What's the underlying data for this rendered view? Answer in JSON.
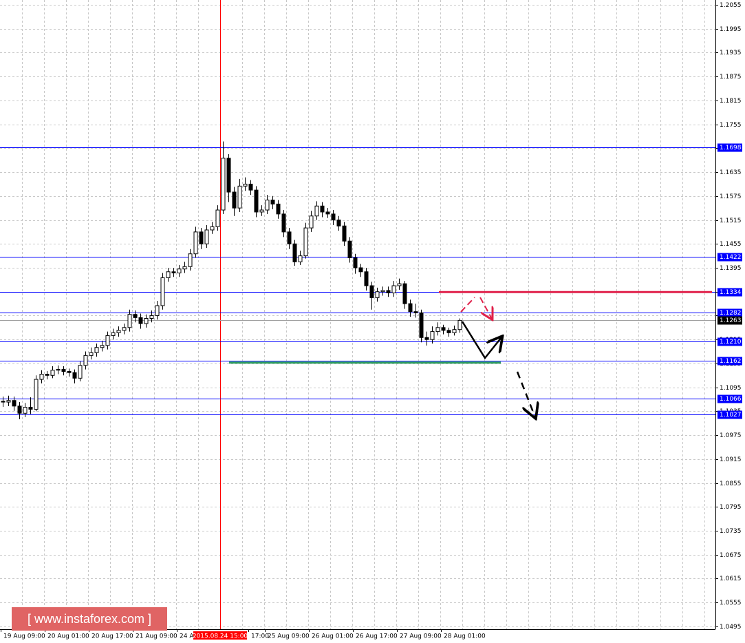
{
  "chart_data": {
    "type": "candlestick",
    "categories": [
      "19 Aug 09:00",
      null,
      null,
      null,
      null,
      null,
      null,
      null,
      "20 Aug 01:00",
      null,
      null,
      null,
      null,
      null,
      null,
      null,
      "20 Aug 17:00",
      null,
      null,
      null,
      null,
      null,
      null,
      null,
      "21 Aug 09:00",
      null,
      null,
      null,
      null,
      null,
      null,
      null,
      "24 A",
      null,
      null,
      null,
      null,
      null,
      null,
      null,
      "2015.08.24 15:00",
      null,
      null,
      null,
      null,
      "17:00",
      null,
      null,
      "25 Aug 09:00",
      null,
      null,
      null,
      null,
      null,
      null,
      null,
      "26 Aug 01:00",
      null,
      null,
      null,
      null,
      null,
      null,
      null,
      "26 Aug 17:00",
      null,
      null,
      null,
      null,
      null,
      null,
      null,
      "27 Aug 09:00",
      null,
      null,
      null,
      null,
      null,
      null,
      null,
      "28 Aug 01:00",
      null,
      null,
      null
    ],
    "cursor_index": 40,
    "open": [
      1.106,
      1.1058,
      1.1062,
      1.1048,
      1.103,
      1.1045,
      1.104,
      1.1115,
      1.1128,
      1.1125,
      1.1138,
      1.114,
      1.1135,
      1.1132,
      1.1118,
      1.115,
      1.1175,
      1.1182,
      1.1195,
      1.12,
      1.1225,
      1.1232,
      1.1238,
      1.1245,
      1.1278,
      1.127,
      1.1255,
      1.1268,
      1.1275,
      1.13,
      1.137,
      1.1385,
      1.1382,
      1.1392,
      1.1398,
      1.143,
      1.1485,
      1.1455,
      1.149,
      1.1498,
      1.154,
      1.167,
      1.1585,
      1.1545,
      1.16,
      1.1605,
      1.159,
      1.1535,
      1.154,
      1.1565,
      1.1555,
      1.153,
      1.1485,
      1.1455,
      1.141,
      1.1425,
      1.1495,
      1.1525,
      1.155,
      1.1535,
      1.153,
      1.1515,
      1.15,
      1.1462,
      1.142,
      1.1395,
      1.1385,
      1.135,
      1.132,
      1.1335,
      1.1338,
      1.1332,
      1.135,
      1.1355,
      1.1305,
      1.1285,
      1.1282,
      1.122,
      1.1215,
      1.1235,
      1.1245,
      1.1238,
      1.1232,
      1.124
    ],
    "high": [
      1.1072,
      1.1074,
      1.1072,
      1.1058,
      1.1056,
      1.107,
      1.1125,
      1.1138,
      1.1136,
      1.1148,
      1.115,
      1.1148,
      1.1142,
      1.114,
      1.116,
      1.1185,
      1.1195,
      1.1205,
      1.1212,
      1.1235,
      1.1242,
      1.1248,
      1.1255,
      1.129,
      1.1288,
      1.128,
      1.1278,
      1.1288,
      1.1312,
      1.1382,
      1.1395,
      1.1395,
      1.1402,
      1.141,
      1.1442,
      1.1498,
      1.1495,
      1.1502,
      1.151,
      1.1552,
      1.1712,
      1.168,
      1.1598,
      1.1618,
      1.1622,
      1.1615,
      1.16,
      1.1552,
      1.1578,
      1.1575,
      1.1565,
      1.154,
      1.1495,
      1.1465,
      1.1438,
      1.1508,
      1.1538,
      1.1562,
      1.156,
      1.1545,
      1.154,
      1.1525,
      1.151,
      1.1472,
      1.143,
      1.1405,
      1.1395,
      1.136,
      1.1345,
      1.1348,
      1.1348,
      1.1362,
      1.1368,
      1.1362,
      1.1315,
      1.1305,
      1.129,
      1.1235,
      1.1248,
      1.1258,
      1.1252,
      1.1245,
      1.125,
      1.1268
    ],
    "low": [
      1.1046,
      1.1048,
      1.1036,
      1.1015,
      1.102,
      1.1028,
      1.1035,
      1.1105,
      1.1115,
      1.1118,
      1.1128,
      1.1125,
      1.1122,
      1.1105,
      1.111,
      1.114,
      1.1165,
      1.1172,
      1.1185,
      1.119,
      1.1215,
      1.1222,
      1.1228,
      1.1235,
      1.1258,
      1.1242,
      1.1245,
      1.1258,
      1.1265,
      1.129,
      1.136,
      1.1372,
      1.1372,
      1.1382,
      1.1388,
      1.142,
      1.1442,
      1.1445,
      1.148,
      1.1488,
      1.153,
      1.156,
      1.1525,
      1.1535,
      1.1588,
      1.1578,
      1.1522,
      1.1525,
      1.153,
      1.1542,
      1.1518,
      1.1472,
      1.1442,
      1.14,
      1.1402,
      1.1418,
      1.1485,
      1.1515,
      1.1522,
      1.152,
      1.1502,
      1.1488,
      1.145,
      1.1408,
      1.138,
      1.1372,
      1.1338,
      1.129,
      1.131,
      1.1325,
      1.1322,
      1.1322,
      1.134,
      1.1292,
      1.1272,
      1.127,
      1.1208,
      1.12,
      1.1205,
      1.1225,
      1.1228,
      1.1222,
      1.1225,
      1.1232
    ],
    "close": [
      1.1058,
      1.1062,
      1.1048,
      1.103,
      1.1045,
      1.104,
      1.1115,
      1.1128,
      1.1125,
      1.1138,
      1.114,
      1.1135,
      1.1132,
      1.1118,
      1.115,
      1.1175,
      1.1182,
      1.1195,
      1.12,
      1.1225,
      1.1232,
      1.1238,
      1.1245,
      1.1278,
      1.127,
      1.1255,
      1.1268,
      1.1275,
      1.13,
      1.137,
      1.1385,
      1.1382,
      1.1392,
      1.1398,
      1.143,
      1.1485,
      1.1455,
      1.149,
      1.1498,
      1.154,
      1.167,
      1.1585,
      1.1545,
      1.16,
      1.1605,
      1.159,
      1.1535,
      1.154,
      1.1565,
      1.1555,
      1.153,
      1.1485,
      1.1455,
      1.141,
      1.1425,
      1.1495,
      1.1525,
      1.155,
      1.1535,
      1.153,
      1.1515,
      1.15,
      1.1462,
      1.142,
      1.1395,
      1.1385,
      1.135,
      1.132,
      1.1335,
      1.1338,
      1.1332,
      1.135,
      1.1355,
      1.1305,
      1.1285,
      1.1282,
      1.122,
      1.1215,
      1.1235,
      1.1245,
      1.1238,
      1.1232,
      1.124,
      1.1263
    ],
    "ylim": [
      1.0488,
      1.2067
    ],
    "yticks": [
      1.2055,
      1.1995,
      1.1935,
      1.1875,
      1.1815,
      1.1755,
      1.1695,
      1.1635,
      1.1575,
      1.1515,
      1.1455,
      1.1395,
      1.1335,
      1.1275,
      1.1215,
      1.1155,
      1.1095,
      1.1035,
      1.0975,
      1.0915,
      1.0855,
      1.0795,
      1.0735,
      1.0675,
      1.0615,
      1.0555,
      1.0495
    ],
    "grid": true,
    "levels": [
      1.1698,
      1.1422,
      1.1334,
      1.1282,
      {
        "value": 1.121,
        "label": "1.1210"
      },
      1.1162,
      1.1066,
      1.1027
    ],
    "level_color": "#0000ff",
    "current_price": 1.1263,
    "resistance_line": {
      "value": 1.1334,
      "color": "#e0204a"
    },
    "support_line": {
      "value": 1.1157,
      "color": "#2e9e5e"
    },
    "cursor_color": "#ff0000",
    "watermark": "[  www.instaforex.com  ]"
  }
}
